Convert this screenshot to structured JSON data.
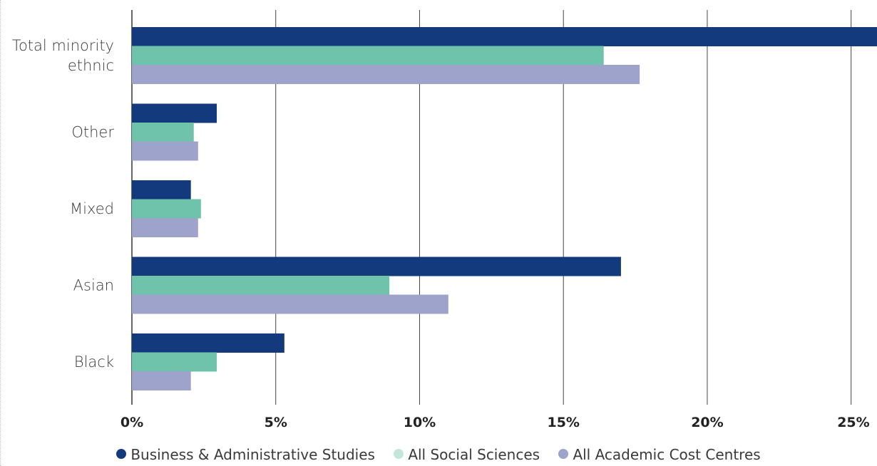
{
  "chart_data": {
    "type": "bar",
    "orientation": "horizontal",
    "categories": [
      "Total minority ethnic",
      "Other",
      "Mixed",
      "Asian",
      "Black"
    ],
    "category_lines": [
      [
        "Total minority",
        "ethnic"
      ],
      [
        "Other"
      ],
      [
        "Mixed"
      ],
      [
        "Asian"
      ],
      [
        "Black"
      ]
    ],
    "series": [
      {
        "name": "Business & Administrative Studies",
        "color": "#143a7e",
        "values": [
          26.0,
          2.95,
          2.05,
          17.0,
          5.3
        ]
      },
      {
        "name": "All Social Sciences",
        "color": "#6fc3aa",
        "values": [
          16.4,
          2.15,
          2.4,
          8.95,
          2.95
        ]
      },
      {
        "name": "All Academic Cost Centres",
        "color": "#9ea3cb",
        "values": [
          17.65,
          2.3,
          2.3,
          11.0,
          2.05
        ]
      }
    ],
    "xlim": [
      0,
      25.9
    ],
    "xticks": [
      0,
      5,
      10,
      15,
      20,
      25
    ],
    "xtick_labels": [
      "0%",
      "5%",
      "10%",
      "15%",
      "20%",
      "25%"
    ],
    "legend_dot_colors": [
      "#143a7e",
      "#c3e6dc",
      "#9ea3cb"
    ],
    "grid": true,
    "legend_position": "bottom"
  }
}
